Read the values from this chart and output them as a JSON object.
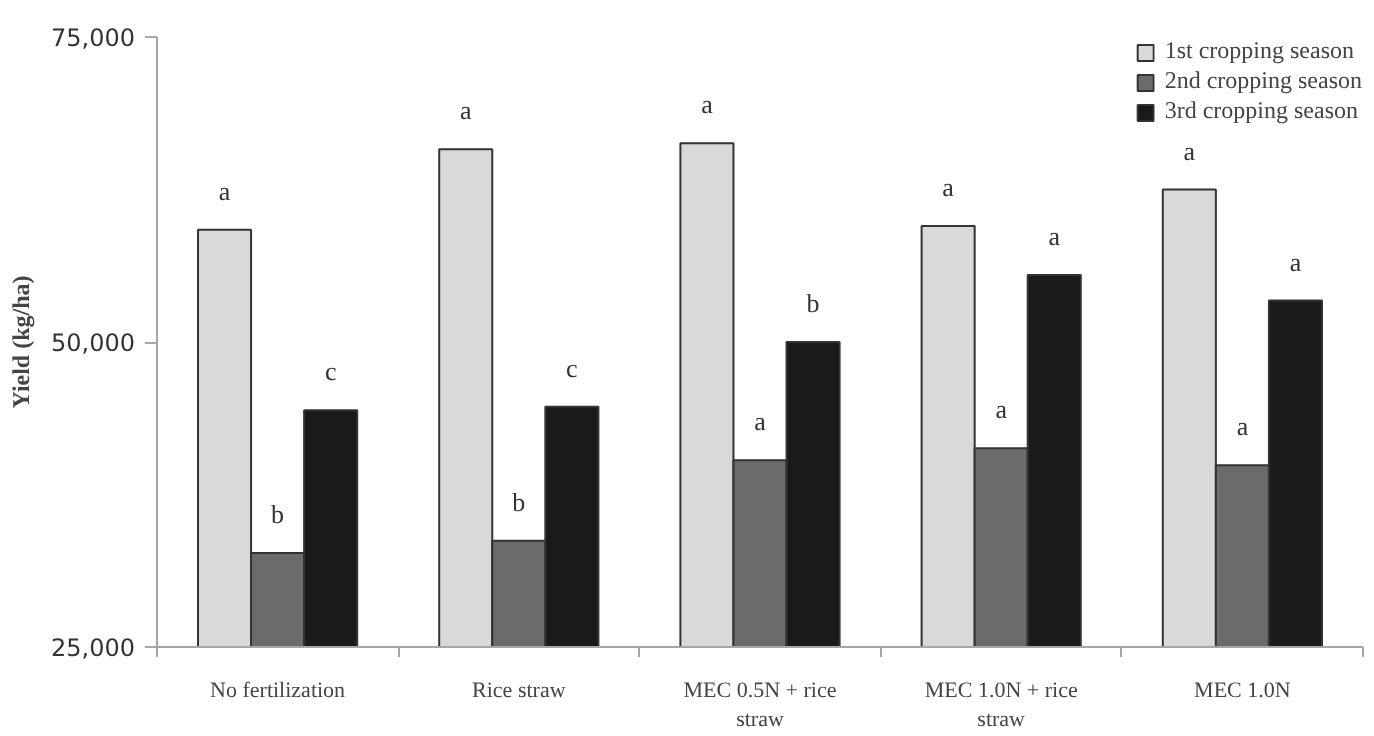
{
  "chart_data": {
    "type": "bar",
    "ylabel": "Yield (kg/ha)",
    "categories": [
      "No fertilization",
      "Rice straw",
      "MEC 0.5N + rice straw",
      "MEC 1.0N + rice straw",
      "MEC 1.0N"
    ],
    "series": [
      {
        "name": "1st cropping season",
        "color": "#d9d9d9",
        "values": [
          59200,
          65800,
          66300,
          59500,
          62500
        ],
        "value_labels": [
          "a",
          "a",
          "a",
          "a",
          "a"
        ]
      },
      {
        "name": "2nd cropping season",
        "color": "#6b6b6b",
        "values": [
          32700,
          33700,
          40300,
          41300,
          39900
        ],
        "value_labels": [
          "b",
          "b",
          "a",
          "a",
          "a"
        ]
      },
      {
        "name": "3rd cropping season",
        "color": "#1a1a1a",
        "values": [
          44400,
          44700,
          50000,
          55500,
          53400
        ],
        "value_labels": [
          "c",
          "c",
          "b",
          "a",
          "a"
        ]
      }
    ],
    "ylim": [
      25000,
      75000
    ],
    "yticks": [
      {
        "value": 25000,
        "label": "25,000"
      },
      {
        "value": 50000,
        "label": "50,000"
      },
      {
        "value": 75000,
        "label": "75,000"
      }
    ],
    "grid": false,
    "legend": "top right"
  }
}
